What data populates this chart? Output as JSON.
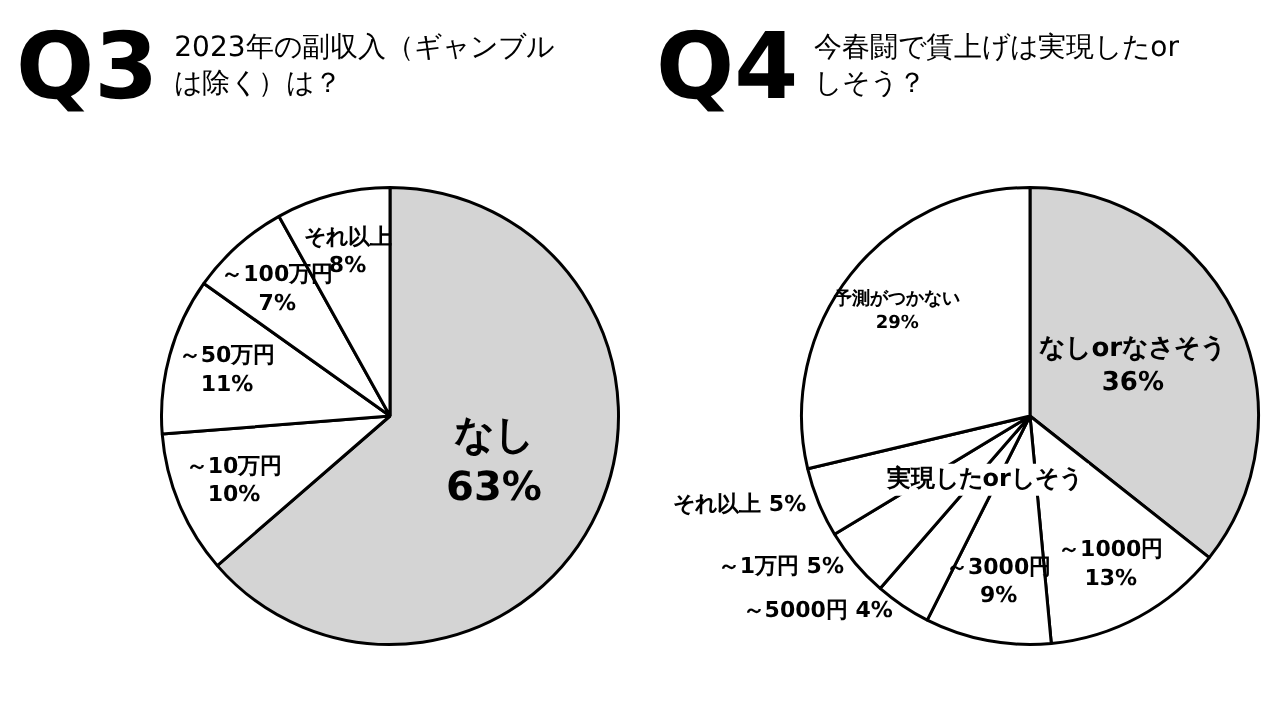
{
  "chart_data": [
    {
      "type": "pie",
      "title": "Q3",
      "subtitle": "2023年の副収入（ギャンブルは除く）は？",
      "categories": [
        "なし",
        "～10万円",
        "～50万円",
        "～100万円",
        "それ以上"
      ],
      "values": [
        63,
        10,
        11,
        7,
        8
      ],
      "value_labels": [
        "63%",
        "10%",
        "11%",
        "7%",
        "8%"
      ],
      "colors": [
        "#d4d4d4",
        "#ffffff",
        "#ffffff",
        "#ffffff",
        "#ffffff"
      ],
      "legend": false
    },
    {
      "type": "pie",
      "title": "Q4",
      "subtitle": "今春闘で賃上げは実現したorしそう？",
      "categories": [
        "なしorなさそう",
        "～1000円",
        "～3000円",
        "～5000円",
        "～1万円",
        "それ以上",
        "予測がつかない"
      ],
      "values": [
        36,
        13,
        9,
        4,
        5,
        5,
        29
      ],
      "value_labels": [
        "36%",
        "13%",
        "9%",
        "4%",
        "5%",
        "5%",
        "29%"
      ],
      "colors": [
        "#d4d4d4",
        "#ffffff",
        "#ffffff",
        "#ffffff",
        "#ffffff",
        "#ffffff",
        "#ffffff"
      ],
      "legend": false,
      "annotations": [
        "実現したorしそう"
      ]
    }
  ]
}
